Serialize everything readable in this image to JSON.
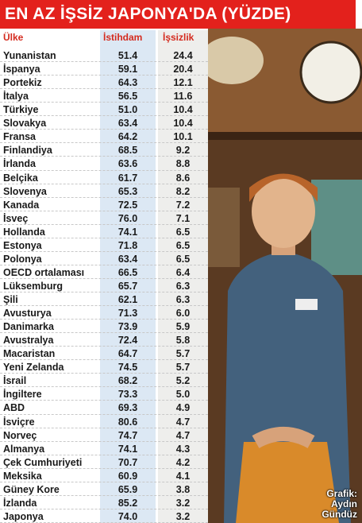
{
  "header": {
    "title": "EN AZ İŞSİZ JAPONYA'DA (YÜZDE)"
  },
  "table": {
    "columns": [
      "Ülke",
      "İstihdam",
      "İşsizlik"
    ],
    "rows": [
      [
        "Yunanistan",
        "51.4",
        "24.4"
      ],
      [
        "İspanya",
        "59.1",
        "20.4"
      ],
      [
        "Portekiz",
        "64.3",
        "12.1"
      ],
      [
        "İtalya",
        "56.5",
        "11.6"
      ],
      [
        "Türkiye",
        "51.0",
        "10.4"
      ],
      [
        "Slovakya",
        "63.4",
        "10.4"
      ],
      [
        "Fransa",
        "64.2",
        "10.1"
      ],
      [
        "Finlandiya",
        "68.5",
        "9.2"
      ],
      [
        "İrlanda",
        "63.6",
        "8.8"
      ],
      [
        "Belçika",
        "61.7",
        "8.6"
      ],
      [
        "Slovenya",
        "65.3",
        "8.2"
      ],
      [
        "Kanada",
        "72.5",
        "7.2"
      ],
      [
        "İsveç",
        "76.0",
        "7.1"
      ],
      [
        "Hollanda",
        "74.1",
        "6.5"
      ],
      [
        "Estonya",
        "71.8",
        "6.5"
      ],
      [
        "Polonya",
        "63.4",
        "6.5"
      ],
      [
        "OECD ortalaması",
        "66.5",
        "6.4"
      ],
      [
        "Lüksemburg",
        "65.7",
        "6.3"
      ],
      [
        "Şili",
        "62.1",
        "6.3"
      ],
      [
        "Avusturya",
        "71.3",
        "6.0"
      ],
      [
        "Danimarka",
        "73.9",
        "5.9"
      ],
      [
        "Avustralya",
        "72.4",
        "5.8"
      ],
      [
        "Macaristan",
        "64.7",
        "5.7"
      ],
      [
        "Yeni Zelanda",
        "74.5",
        "5.7"
      ],
      [
        "İsrail",
        "68.2",
        "5.2"
      ],
      [
        "İngiltere",
        "73.3",
        "5.0"
      ],
      [
        "ABD",
        "69.3",
        "4.9"
      ],
      [
        "İsviçre",
        "80.6",
        "4.7"
      ],
      [
        "Norveç",
        "74.7",
        "4.7"
      ],
      [
        "Almanya",
        "74.1",
        "4.3"
      ],
      [
        "Çek Cumhuriyeti",
        "70.7",
        "4.2"
      ],
      [
        "Meksika",
        "60.9",
        "4.1"
      ],
      [
        "Güney Kore",
        "65.9",
        "3.8"
      ],
      [
        "İzlanda",
        "85.2",
        "3.2"
      ],
      [
        "Japonya",
        "74.0",
        "3.2"
      ]
    ]
  },
  "credit": {
    "label": "Grafik:",
    "author": "Aydın Gündüz"
  }
}
